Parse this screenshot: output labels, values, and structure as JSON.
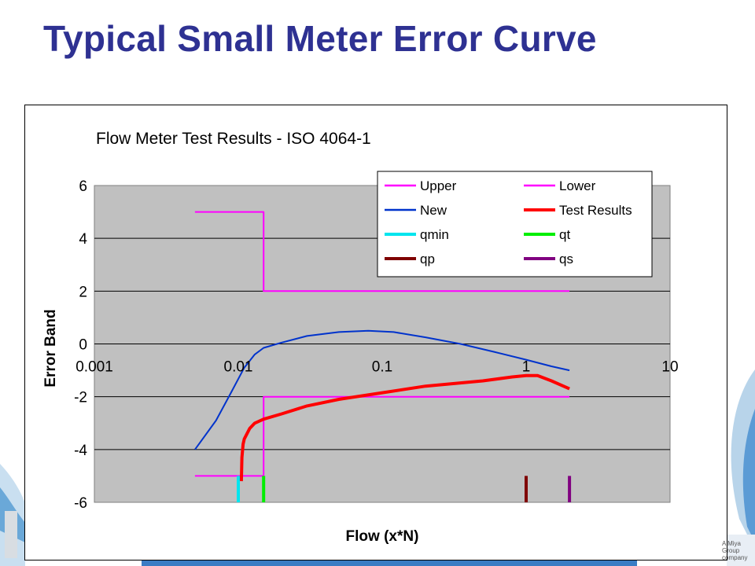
{
  "slide": {
    "title": "Typical Small Meter Error Curve",
    "footer_company": "A Miya Group company"
  },
  "colors": {
    "title": "#2e3192",
    "plot_bg": "#c0c0c0",
    "upper": "#ff00ff",
    "lower": "#ff00ff",
    "new": "#0033cc",
    "test_results": "#ff0000",
    "qmin": "#00e5ee",
    "qt": "#00ee00",
    "qp": "#7f0000",
    "qs": "#800080"
  },
  "chart_data": {
    "type": "line",
    "title": "Flow Meter Test Results -  ISO 4064-1",
    "xlabel": "Flow (x*N)",
    "ylabel": "Error Band",
    "x_scale": "log",
    "xlim": [
      0.001,
      10
    ],
    "ylim": [
      -6,
      6
    ],
    "x_ticks": [
      "0.001",
      "0.01",
      "0.1",
      "1",
      "10"
    ],
    "y_ticks": [
      "-6",
      "-4",
      "-2",
      "0",
      "2",
      "4",
      "6"
    ],
    "grid": "horizontal",
    "legend_position": "top-right",
    "series": [
      {
        "name": "Upper",
        "color": "#ff00ff",
        "width": 2,
        "x": [
          0.005,
          0.015,
          0.015,
          2
        ],
        "y": [
          5,
          5,
          2,
          2
        ]
      },
      {
        "name": "Lower",
        "color": "#ff00ff",
        "width": 2,
        "x": [
          0.005,
          0.015,
          0.015,
          2
        ],
        "y": [
          -5,
          -5,
          -2,
          -2
        ]
      },
      {
        "name": "New",
        "color": "#0033cc",
        "width": 2,
        "x": [
          0.005,
          0.007,
          0.009,
          0.011,
          0.013,
          0.015,
          0.02,
          0.03,
          0.05,
          0.08,
          0.12,
          0.2,
          0.35,
          0.6,
          1.0,
          1.5,
          2.0
        ],
        "y": [
          -4.0,
          -2.9,
          -1.8,
          -0.9,
          -0.4,
          -0.15,
          0.05,
          0.3,
          0.45,
          0.5,
          0.45,
          0.25,
          0.0,
          -0.3,
          -0.6,
          -0.85,
          -1.0
        ]
      },
      {
        "name": "Test Results",
        "color": "#ff0000",
        "width": 4,
        "x": [
          0.0105,
          0.0106,
          0.0108,
          0.011,
          0.012,
          0.013,
          0.015,
          0.02,
          0.03,
          0.05,
          0.1,
          0.2,
          0.5,
          0.8,
          1.0,
          1.2,
          1.5,
          2.0
        ],
        "y": [
          -5.2,
          -4.3,
          -3.8,
          -3.6,
          -3.2,
          -3.0,
          -2.85,
          -2.65,
          -2.35,
          -2.1,
          -1.85,
          -1.6,
          -1.4,
          -1.25,
          -1.2,
          -1.2,
          -1.4,
          -1.7
        ]
      },
      {
        "name": "qmin",
        "color": "#00e5ee",
        "width": 4,
        "x": [
          0.01,
          0.01
        ],
        "y": [
          -5,
          -6
        ]
      },
      {
        "name": "qt",
        "color": "#00ee00",
        "width": 4,
        "x": [
          0.015,
          0.015
        ],
        "y": [
          -5,
          -6
        ]
      },
      {
        "name": "qp",
        "color": "#7f0000",
        "width": 4,
        "x": [
          1.0,
          1.0
        ],
        "y": [
          -5,
          -6
        ]
      },
      {
        "name": "qs",
        "color": "#800080",
        "width": 4,
        "x": [
          2.0,
          2.0
        ],
        "y": [
          -5,
          -6
        ]
      }
    ]
  }
}
